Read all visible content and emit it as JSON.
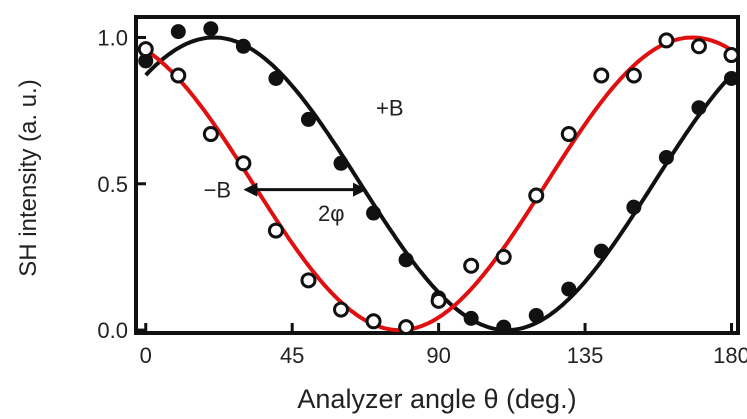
{
  "chart_data": {
    "type": "scatter",
    "xlabel": "Analyzer angle θ  (deg.)",
    "ylabel": "SH intensity (a. u.)",
    "xlim": [
      -3,
      182
    ],
    "ylim": [
      -0.01,
      1.07
    ],
    "xticks": [
      0,
      45,
      90,
      135,
      180
    ],
    "xtick_labels": [
      "0",
      "45",
      "90",
      "135",
      "180"
    ],
    "yticks": [
      0.0,
      0.5,
      1.0
    ],
    "ytick_labels": [
      "0.0",
      "0.5",
      "1.0"
    ],
    "grid": false,
    "series": [
      {
        "name": "+B",
        "marker": "filled-circle",
        "color": "#111111",
        "x": [
          0,
          10,
          20,
          30,
          40,
          50,
          60,
          70,
          80,
          90,
          100,
          110,
          120,
          130,
          140,
          150,
          160,
          170,
          180
        ],
        "y": [
          0.92,
          1.02,
          1.03,
          0.97,
          0.86,
          0.72,
          0.57,
          0.4,
          0.24,
          0.11,
          0.04,
          0.01,
          0.05,
          0.14,
          0.27,
          0.42,
          0.59,
          0.76,
          0.86
        ],
        "fit": {
          "form": "cos2",
          "amplitude": 1.0,
          "center_deg": 21.0,
          "offset": 0.0,
          "color": "#111111"
        }
      },
      {
        "name": "−B",
        "marker": "open-circle",
        "color": "#111111",
        "x": [
          0,
          10,
          20,
          30,
          40,
          50,
          60,
          70,
          80,
          90,
          100,
          110,
          120,
          130,
          140,
          150,
          160,
          170,
          180
        ],
        "y": [
          0.96,
          0.87,
          0.67,
          0.57,
          0.34,
          0.17,
          0.07,
          0.03,
          0.01,
          0.1,
          0.22,
          0.25,
          0.46,
          0.67,
          0.87,
          0.87,
          0.99,
          0.97,
          0.94
        ],
        "fit": {
          "form": "cos2",
          "amplitude": 1.0,
          "center_deg": 168.0,
          "offset": 0.0,
          "color": "#e01010"
        }
      }
    ],
    "annotations": [
      {
        "text": "+B",
        "x": 75,
        "y": 0.76
      },
      {
        "text": "−B",
        "x": 22,
        "y": 0.48
      },
      {
        "text": "2φ",
        "x": 57,
        "y": 0.4
      },
      {
        "type": "double-arrow",
        "x_from": 30,
        "x_to": 68,
        "y": 0.48
      }
    ]
  }
}
